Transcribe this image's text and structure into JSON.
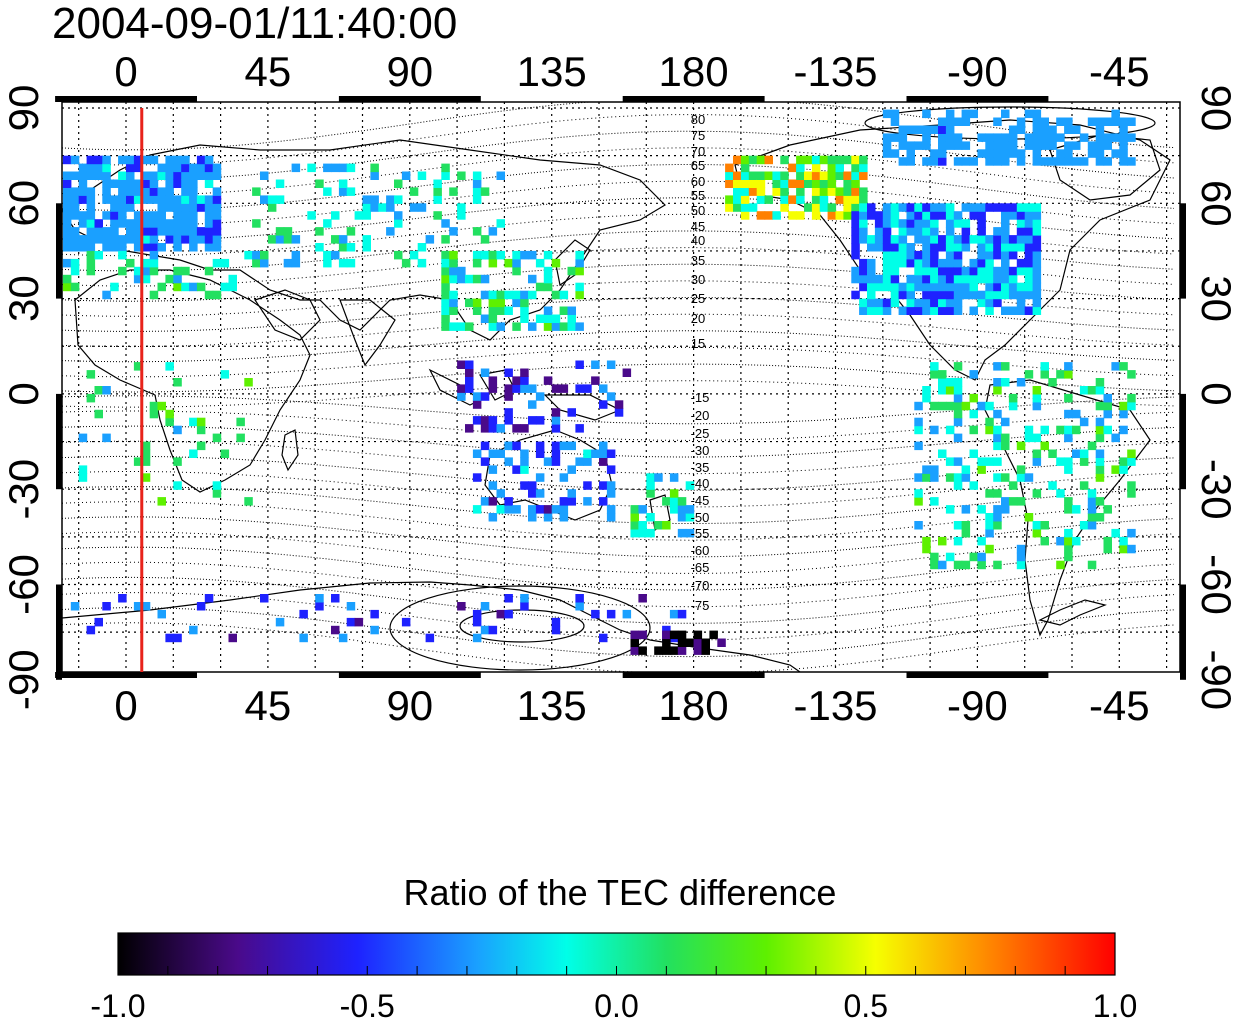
{
  "title": "2004-09-01/11:40:00",
  "map": {
    "x_ticks": [
      "0",
      "45",
      "90",
      "135",
      "180",
      "-135",
      "-90",
      "-45"
    ],
    "y_ticks": [
      "90",
      "60",
      "30",
      "0",
      "-30",
      "-60",
      "-90"
    ],
    "contour_labels_north": [
      "80",
      "75",
      "70",
      "65",
      "60",
      "55",
      "50",
      "45",
      "40",
      "35",
      "30",
      "25",
      "20",
      "15"
    ],
    "contour_labels_south": [
      "-15",
      "-20",
      "-25",
      "-30",
      "-35",
      "-40",
      "-45",
      "-50",
      "-55",
      "-60",
      "-65",
      "-70",
      "-75"
    ],
    "reference_longitude": 5,
    "reference_line_color": "#e8231b"
  },
  "colorbar": {
    "title": "Ratio of the TEC difference",
    "tick_labels": [
      "-1.0",
      "-0.5",
      "0.0",
      "0.5",
      "1.0"
    ],
    "stops": [
      "#000000",
      "#4a0a8a",
      "#1e22ff",
      "#1aa0ff",
      "#00ffe8",
      "#22e060",
      "#5ef000",
      "#f6ff00",
      "#ff8000",
      "#ff0000"
    ]
  }
}
